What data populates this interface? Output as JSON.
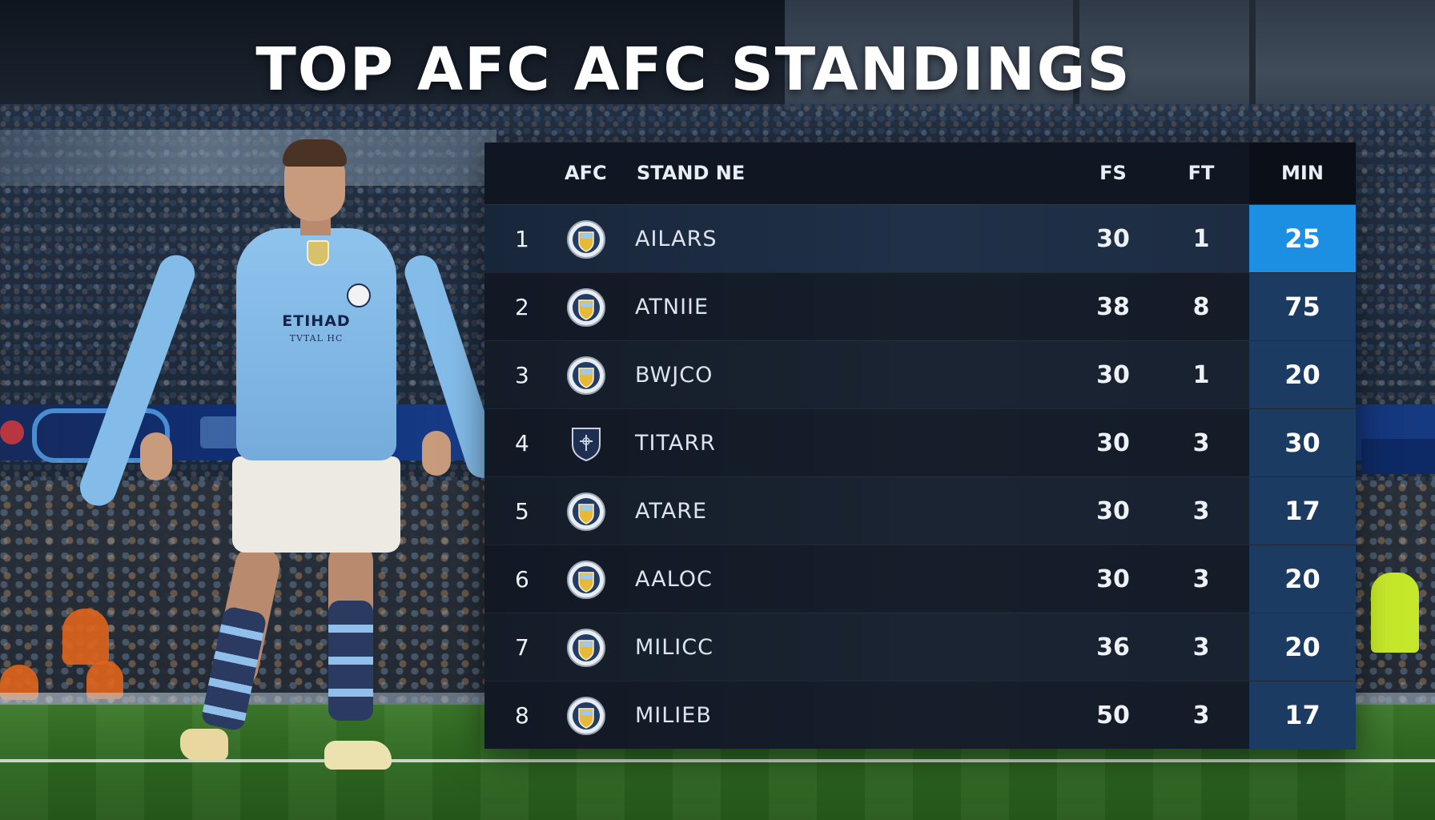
{
  "headline": "TOP AFC AFC STANDINGS",
  "player": {
    "sponsor": "ETIHAD",
    "sponsor_sub": "TVTAL HC"
  },
  "table": {
    "headers": {
      "group": "AFC",
      "team": "STAND NE",
      "fs": "FS",
      "ft": "FT",
      "min": "MIN"
    },
    "rows": [
      {
        "rank": "1",
        "crest": "round-club-crest-icon",
        "team": "AILARS",
        "fs": "30",
        "ft": "1",
        "min": "25"
      },
      {
        "rank": "2",
        "crest": "round-club-crest-icon",
        "team": "ATNIIE",
        "fs": "38",
        "ft": "8",
        "min": "75"
      },
      {
        "rank": "3",
        "crest": "round-club-crest-icon",
        "team": "BWJCO",
        "fs": "30",
        "ft": "1",
        "min": "20"
      },
      {
        "rank": "4",
        "crest": "shield-crest-icon",
        "team": "TITARR",
        "fs": "30",
        "ft": "3",
        "min": "30"
      },
      {
        "rank": "5",
        "crest": "round-club-crest-icon",
        "team": "ATARE",
        "fs": "30",
        "ft": "3",
        "min": "17"
      },
      {
        "rank": "6",
        "crest": "round-club-crest-icon",
        "team": "AALOC",
        "fs": "30",
        "ft": "3",
        "min": "20"
      },
      {
        "rank": "7",
        "crest": "round-club-crest-icon",
        "team": "MILICC",
        "fs": "36",
        "ft": "3",
        "min": "20"
      },
      {
        "rank": "8",
        "crest": "round-club-crest-icon",
        "team": "MILIEB",
        "fs": "50",
        "ft": "3",
        "min": "17"
      }
    ]
  },
  "colors": {
    "panel_bg": "#0e131c",
    "min_column": "#1b3b63",
    "min_highlight": "#1d8fe3",
    "kit_blue": "#8ec3ec",
    "pitch_green": "#2f6a22"
  }
}
